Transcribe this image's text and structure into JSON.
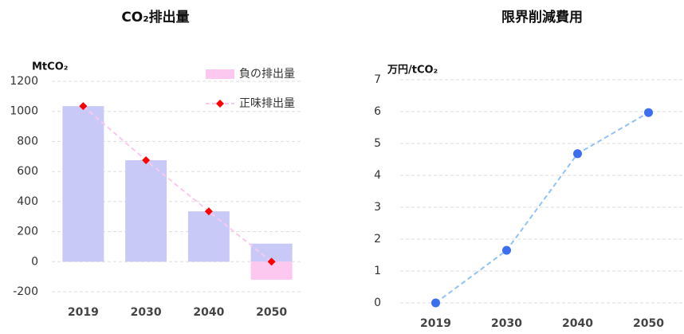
{
  "chart_data": [
    {
      "type": "bar",
      "title": "CO₂排出量",
      "y_label": "MtCO₂",
      "categories": [
        "2019",
        "2030",
        "2040",
        "2050"
      ],
      "series": [
        {
          "type": "bar",
          "color": "#c9c9f7",
          "values": [
            1035,
            675,
            335,
            120
          ]
        },
        {
          "type": "bar",
          "name": "負の排出量",
          "color": "#fcc8f0",
          "values": [
            0,
            0,
            0,
            -120
          ]
        },
        {
          "type": "line",
          "name": "正味排出量",
          "color": "#f9c8ee",
          "marker_color": "#ff0000",
          "marker": "diamond",
          "values": [
            1035,
            675,
            335,
            0
          ]
        }
      ],
      "ylim": [
        -200,
        1200
      ],
      "yticks": [
        -200,
        0,
        200,
        400,
        600,
        800,
        1000,
        1200
      ],
      "grid": true,
      "legend": "upper right"
    },
    {
      "type": "line",
      "title": "限界削減費用",
      "y_label": "万円/tCO₂",
      "categories": [
        "2019",
        "2030",
        "2040",
        "2050"
      ],
      "series": [
        {
          "type": "line",
          "color": "#8fc3f5",
          "marker_color": "#3d6ef0",
          "marker": "circle",
          "values": [
            0,
            1.65,
            4.68,
            5.97
          ]
        }
      ],
      "ylim": [
        0,
        7
      ],
      "yticks": [
        0,
        1,
        2,
        3,
        4,
        5,
        6,
        7
      ],
      "grid": true
    }
  ]
}
